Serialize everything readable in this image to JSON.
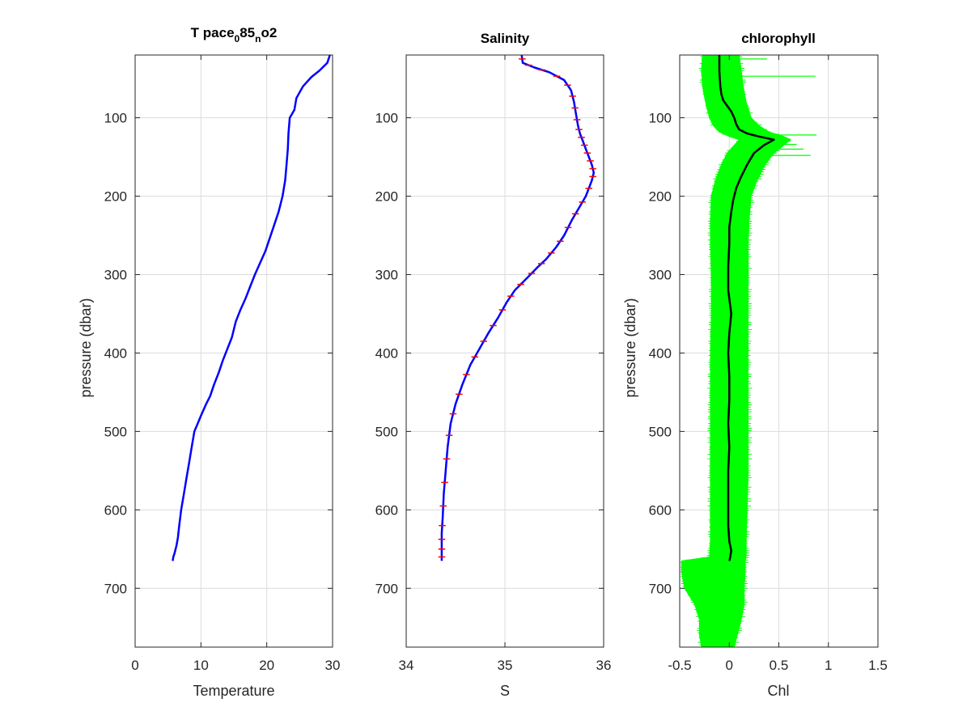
{
  "chart_data": [
    {
      "type": "line",
      "title": "T pace",
      "title_sub1": "0",
      "title_mid": "85",
      "title_sub2": "n",
      "title_end": "o2",
      "xlabel": "Temperature",
      "ylabel": "pressure (dbar)",
      "xlim": [
        0,
        30
      ],
      "ylim": [
        20,
        775
      ],
      "y_reversed": true,
      "xticks": [
        0,
        10,
        20,
        30
      ],
      "yticks": [
        100,
        200,
        300,
        400,
        500,
        600,
        700
      ],
      "grid": true,
      "series": [
        {
          "color": "#0000ff",
          "x": [
            29.6,
            29.2,
            28.0,
            26.8,
            25.5,
            24.5,
            24.2,
            23.5,
            23.3,
            23.2,
            23.0,
            22.8,
            22.4,
            21.8,
            21.0,
            20.4,
            19.8,
            19.0,
            18.2,
            17.5,
            16.8,
            16.0,
            15.3,
            14.7,
            14.0,
            13.3,
            12.7,
            12.0,
            11.4,
            10.8,
            10.0,
            9.5,
            9.0,
            8.6,
            8.2,
            7.8,
            7.4,
            7.0,
            6.7,
            6.5,
            6.3,
            6.0,
            5.8,
            5.7
          ],
          "y": [
            20,
            30,
            40,
            48,
            60,
            75,
            90,
            100,
            120,
            140,
            160,
            180,
            200,
            220,
            240,
            255,
            270,
            285,
            300,
            315,
            330,
            345,
            360,
            380,
            395,
            410,
            425,
            440,
            455,
            465,
            480,
            490,
            500,
            520,
            540,
            560,
            580,
            600,
            620,
            635,
            645,
            655,
            660,
            665
          ]
        }
      ]
    },
    {
      "type": "line",
      "title": "Salinity",
      "xlabel": "S",
      "xlim": [
        34,
        36
      ],
      "ylim": [
        20,
        775
      ],
      "y_reversed": true,
      "xticks": [
        34,
        35,
        36
      ],
      "xticklabels": [
        "34",
        "35",
        "36"
      ],
      "yticks": [
        100,
        200,
        300,
        400,
        500,
        600,
        700
      ],
      "grid": true,
      "series": [
        {
          "color": "#0000ff",
          "x": [
            35.17,
            35.18,
            35.3,
            35.45,
            35.6,
            35.67,
            35.7,
            35.72,
            35.74,
            35.76,
            35.79,
            35.82,
            35.85,
            35.88,
            35.9,
            35.88,
            35.82,
            35.75,
            35.68,
            35.6,
            35.52,
            35.42,
            35.32,
            35.22,
            35.1,
            35.02,
            34.93,
            34.83,
            34.74,
            34.65,
            34.57,
            34.5,
            34.45,
            34.42,
            34.4,
            34.38,
            34.37,
            34.36,
            34.36,
            34.36,
            34.36
          ],
          "y": [
            20,
            30,
            36,
            42,
            52,
            65,
            80,
            95,
            110,
            120,
            130,
            140,
            150,
            160,
            170,
            180,
            200,
            215,
            230,
            250,
            265,
            280,
            292,
            305,
            320,
            335,
            355,
            375,
            395,
            415,
            440,
            465,
            490,
            520,
            550,
            580,
            610,
            630,
            645,
            655,
            665
          ]
        }
      ],
      "error_color": "#ff0000"
    },
    {
      "type": "line",
      "title": "chlorophyll",
      "xlabel": "Chl",
      "ylabel": "pressure (dbar)",
      "xlim": [
        -0.5,
        1.5
      ],
      "ylim": [
        20,
        775
      ],
      "y_reversed": true,
      "xticks": [
        -0.5,
        0,
        0.5,
        1,
        1.5
      ],
      "xticklabels": [
        "-0.5",
        "0",
        "0.5",
        "1",
        "1.5"
      ],
      "yticks": [
        100,
        200,
        300,
        400,
        500,
        600,
        700
      ],
      "grid": true,
      "series": [
        {
          "color": "#000000",
          "x": [
            -0.1,
            -0.1,
            -0.09,
            -0.08,
            -0.06,
            -0.02,
            0.02,
            0.05,
            0.07,
            0.1,
            0.18,
            0.3,
            0.45,
            0.35,
            0.25,
            0.18,
            0.12,
            0.07,
            0.04,
            0.02,
            0.0,
            0.0,
            -0.01,
            -0.01,
            0.02,
            0.0,
            -0.01,
            0.0,
            0.0,
            -0.01,
            0.0,
            -0.01,
            -0.01,
            -0.01,
            -0.01,
            0.0,
            0.02,
            0.01,
            0.0
          ],
          "y": [
            20,
            40,
            60,
            70,
            78,
            85,
            92,
            100,
            108,
            115,
            120,
            124,
            128,
            135,
            145,
            160,
            175,
            190,
            205,
            220,
            240,
            260,
            290,
            320,
            350,
            375,
            400,
            430,
            460,
            490,
            520,
            550,
            580,
            600,
            620,
            640,
            652,
            660,
            665
          ]
        }
      ],
      "band_color": "#00ff00",
      "band": {
        "y": [
          20,
          40,
          60,
          80,
          100,
          110,
          118,
          124,
          128,
          135,
          145,
          160,
          180,
          200,
          230,
          260,
          300,
          350,
          400,
          450,
          500,
          550,
          600,
          640,
          660,
          665,
          680,
          700,
          720,
          740,
          760,
          775
        ],
        "lo": [
          -0.27,
          -0.28,
          -0.27,
          -0.24,
          -0.2,
          -0.16,
          -0.1,
          0.0,
          0.1,
          0.05,
          -0.02,
          -0.08,
          -0.14,
          -0.18,
          -0.19,
          -0.19,
          -0.18,
          -0.18,
          -0.19,
          -0.19,
          -0.19,
          -0.19,
          -0.19,
          -0.19,
          -0.2,
          -0.48,
          -0.48,
          -0.45,
          -0.35,
          -0.3,
          -0.3,
          -0.28
        ],
        "hi": [
          0.1,
          0.12,
          0.14,
          0.17,
          0.22,
          0.3,
          0.4,
          0.55,
          0.62,
          0.55,
          0.45,
          0.36,
          0.28,
          0.22,
          0.2,
          0.19,
          0.19,
          0.19,
          0.19,
          0.19,
          0.19,
          0.19,
          0.18,
          0.17,
          0.17,
          0.16,
          0.16,
          0.15,
          0.15,
          0.12,
          0.08,
          0.05
        ]
      },
      "spikes": [
        {
          "y": 25,
          "x": 0.38
        },
        {
          "y": 47,
          "x": 0.87
        },
        {
          "y": 122,
          "x": 0.88
        },
        {
          "y": 140,
          "x": 0.75
        },
        {
          "y": 148,
          "x": 0.82
        },
        {
          "y": 134,
          "x": 0.68
        }
      ]
    }
  ]
}
